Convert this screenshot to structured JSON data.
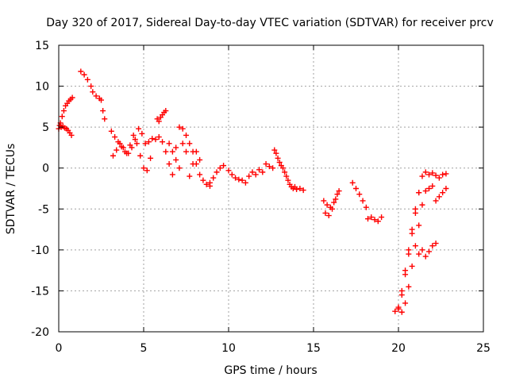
{
  "chart_data": {
    "type": "scatter",
    "title": "Day 320 of 2017, Sidereal Day-to-day VTEC variation (SDTVAR) for receiver prcv",
    "xlabel": "GPS time / hours",
    "ylabel": "SDTVAR / TECUs",
    "xlim": [
      0,
      25
    ],
    "ylim": [
      -20,
      15
    ],
    "xticks": [
      0,
      5,
      10,
      15,
      20,
      25
    ],
    "yticks": [
      -20,
      -15,
      -10,
      -5,
      0,
      5,
      10,
      15
    ],
    "xtick_labels": [
      "0",
      "5",
      "10",
      "15",
      "20",
      "25"
    ],
    "ytick_labels": [
      "-20",
      "-15",
      "-10",
      "-5",
      "0",
      "5",
      "10",
      "15"
    ],
    "grid": true,
    "marker": "+",
    "color": "#ff0000",
    "series": [
      {
        "name": "seg-a",
        "x": [
          0.0,
          0.1,
          0.2,
          0.3,
          0.4,
          0.5,
          0.6,
          0.7,
          0.8
        ],
        "y": [
          4.8,
          5.5,
          6.3,
          7.0,
          7.6,
          7.9,
          8.2,
          8.4,
          8.6
        ]
      },
      {
        "name": "seg-b",
        "x": [
          0.05,
          0.15,
          0.25,
          0.35,
          0.45,
          0.55,
          0.65,
          0.75
        ],
        "y": [
          5.2,
          5.0,
          5.1,
          4.9,
          4.8,
          4.6,
          4.3,
          4.0
        ]
      },
      {
        "name": "seg-c",
        "x": [
          1.3,
          1.5,
          1.7,
          1.9,
          2.0,
          2.2,
          2.4,
          2.5,
          2.6,
          2.7
        ],
        "y": [
          11.8,
          11.4,
          10.8,
          10.0,
          9.3,
          8.8,
          8.5,
          8.3,
          7.0,
          6.0
        ]
      },
      {
        "name": "seg-d",
        "x": [
          3.1,
          3.3,
          3.5,
          3.7,
          3.9,
          4.1,
          4.3,
          4.5,
          4.7,
          4.9,
          5.1,
          5.3,
          5.5,
          5.7,
          5.9,
          6.1,
          6.3,
          6.5,
          6.7,
          6.9,
          7.1,
          7.3,
          7.5,
          7.7,
          7.9,
          8.1,
          8.3,
          8.5,
          8.7,
          8.9
        ],
        "y": [
          4.5,
          3.8,
          3.2,
          2.6,
          2.0,
          1.8,
          2.5,
          3.5,
          4.8,
          4.2,
          3.0,
          3.2,
          3.6,
          3.5,
          3.8,
          3.2,
          2.0,
          0.5,
          -0.8,
          2.5,
          5.0,
          4.8,
          4.0,
          3.0,
          2.0,
          0.5,
          -0.8,
          -1.5,
          -2.0,
          -2.2
        ]
      },
      {
        "name": "seg-e",
        "x": [
          3.2,
          3.4,
          3.6,
          3.8,
          4.0,
          4.2,
          4.4,
          4.6,
          4.8,
          5.0,
          5.2,
          5.4
        ],
        "y": [
          1.5,
          2.2,
          3.0,
          2.5,
          1.8,
          2.8,
          4.0,
          3.0,
          1.5,
          0.0,
          -0.3,
          1.2
        ]
      },
      {
        "name": "seg-f",
        "x": [
          5.8,
          5.9,
          6.0,
          6.1,
          6.2,
          6.3
        ],
        "y": [
          6.0,
          5.7,
          6.2,
          6.5,
          6.8,
          7.0
        ]
      },
      {
        "name": "seg-g",
        "x": [
          6.5,
          6.7,
          6.9,
          7.1,
          7.3,
          7.5,
          7.7,
          7.9,
          8.1,
          8.3
        ],
        "y": [
          3.0,
          2.0,
          1.0,
          0.0,
          3.0,
          2.0,
          -1.0,
          0.5,
          2.0,
          1.0
        ]
      },
      {
        "name": "seg-h",
        "x": [
          8.9,
          9.1,
          9.3,
          9.5,
          9.7
        ],
        "y": [
          -1.8,
          -1.2,
          -0.5,
          0.0,
          0.3
        ]
      },
      {
        "name": "seg-i",
        "x": [
          10.0,
          10.2,
          10.4,
          10.6,
          10.8,
          11.0
        ],
        "y": [
          -0.3,
          -0.8,
          -1.2,
          -1.4,
          -1.5,
          -1.8
        ]
      },
      {
        "name": "seg-j",
        "x": [
          11.2,
          11.4,
          11.6,
          11.8,
          12.0,
          12.2,
          12.4,
          12.6
        ],
        "y": [
          -1.0,
          -0.5,
          -0.8,
          -0.2,
          -0.5,
          0.5,
          0.2,
          0.0
        ]
      },
      {
        "name": "seg-k",
        "x": [
          12.7,
          12.8,
          12.9,
          13.0,
          13.1,
          13.2,
          13.3,
          13.4,
          13.5,
          13.6,
          13.7,
          13.8,
          13.9,
          14.0,
          14.2,
          14.4
        ],
        "y": [
          2.2,
          1.8,
          1.2,
          0.7,
          0.3,
          0.0,
          -0.5,
          -1.0,
          -1.5,
          -2.0,
          -2.3,
          -2.5,
          -2.3,
          -2.6,
          -2.5,
          -2.7
        ]
      },
      {
        "name": "seg-l",
        "x": [
          15.6,
          15.7,
          15.8,
          15.9,
          16.0,
          16.1,
          16.2,
          16.3,
          16.4,
          16.5
        ],
        "y": [
          -4.0,
          -5.5,
          -4.5,
          -5.8,
          -4.8,
          -5.0,
          -4.2,
          -3.8,
          -3.2,
          -2.8
        ]
      },
      {
        "name": "seg-m",
        "x": [
          17.3,
          17.5,
          17.7,
          17.9,
          18.1,
          18.2,
          18.4,
          18.6,
          18.8,
          19.0
        ],
        "y": [
          -1.8,
          -2.5,
          -3.2,
          -4.0,
          -4.8,
          -6.2,
          -6.0,
          -6.3,
          -6.5,
          -6.0
        ]
      },
      {
        "name": "seg-n",
        "x": [
          19.8,
          20.0,
          20.2,
          20.4,
          20.6,
          20.8,
          21.0,
          21.2,
          21.4,
          21.6,
          21.8,
          22.0,
          22.2,
          22.4,
          22.6,
          22.8
        ],
        "y": [
          -17.5,
          -17.2,
          -15.5,
          -13.0,
          -10.5,
          -8.0,
          -5.5,
          -3.0,
          -1.0,
          -0.5,
          -0.8,
          -0.6,
          -0.9,
          -1.2,
          -0.8,
          -0.7
        ]
      },
      {
        "name": "seg-o",
        "x": [
          20.0,
          20.2,
          20.4,
          20.6,
          20.8,
          21.0,
          21.2
        ],
        "y": [
          -17.0,
          -15.0,
          -12.5,
          -10.0,
          -7.5,
          -5.0,
          -3.0
        ]
      },
      {
        "name": "seg-p",
        "x": [
          20.2,
          20.4,
          20.6,
          20.8,
          21.0,
          21.2,
          21.4,
          21.6,
          21.8,
          22.0
        ],
        "y": [
          -17.6,
          -16.5,
          -14.5,
          -12.0,
          -9.5,
          -7.0,
          -4.5,
          -2.8,
          -2.5,
          -2.2
        ]
      },
      {
        "name": "seg-q",
        "x": [
          21.2,
          21.4,
          21.6,
          21.8,
          22.0,
          22.2
        ],
        "y": [
          -10.5,
          -10.0,
          -10.8,
          -10.2,
          -9.5,
          -9.2
        ]
      },
      {
        "name": "seg-r",
        "x": [
          22.2,
          22.4,
          22.6,
          22.8
        ],
        "y": [
          -4.0,
          -3.5,
          -3.0,
          -2.5
        ]
      }
    ]
  }
}
